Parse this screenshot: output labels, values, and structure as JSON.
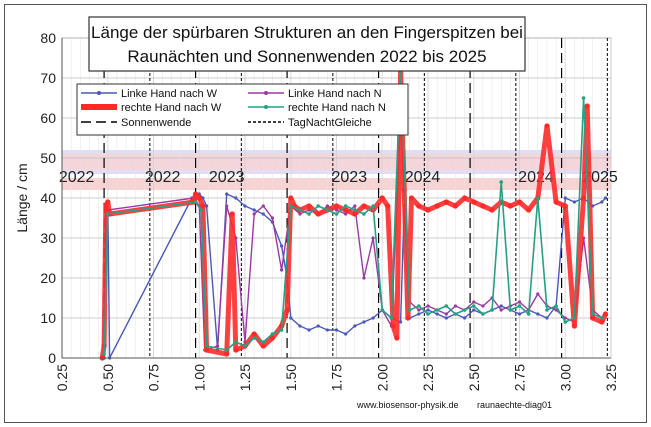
{
  "chart_data": {
    "type": "line",
    "title": [
      "Länge der spürbaren Strukturen an den Fingerspitzen bei",
      "Raunächten  und Sonnenwenden 2022 bis 2025"
    ],
    "xlabel": "",
    "ylabel": "Länge / cm",
    "xlim": [
      0.25,
      3.25
    ],
    "ylim": [
      0,
      80
    ],
    "x_ticks": [
      "0.25",
      "0.50",
      "0.75",
      "1.00",
      "1.25",
      "1.50",
      "1.75",
      "2.00",
      "2.25",
      "2.50",
      "2.75",
      "3.00",
      "3.25"
    ],
    "y_ticks": [
      "0",
      "10",
      "20",
      "30",
      "40",
      "50",
      "60",
      "70",
      "80"
    ],
    "grid": true,
    "year_labels": [
      {
        "x": 0.33,
        "text": "2022"
      },
      {
        "x": 0.8,
        "text": "2022"
      },
      {
        "x": 1.15,
        "text": "2023"
      },
      {
        "x": 1.82,
        "text": "2023"
      },
      {
        "x": 2.22,
        "text": "2024"
      },
      {
        "x": 2.84,
        "text": "2024"
      },
      {
        "x": 3.19,
        "text": "2025"
      }
    ],
    "bands": [
      {
        "y": [
          46,
          52
        ],
        "color": "#d9d1f0"
      },
      {
        "y": [
          42,
          45
        ],
        "color": "#f6c4c4"
      },
      {
        "y": [
          47,
          51
        ],
        "color": "#f9d2d2"
      }
    ],
    "solstices": [
      0.48,
      0.98,
      1.48,
      1.98,
      2.48,
      2.98
    ],
    "equinoxes": [
      0.73,
      1.23,
      1.73,
      2.23,
      2.73,
      3.23
    ],
    "series": [
      {
        "name": "Linke Hand nach W",
        "color": "#4a58b8",
        "x": [
          0.48,
          0.49,
          0.5,
          0.51,
          0.96,
          0.98,
          1.0,
          1.02,
          1.04,
          1.1,
          1.15,
          1.2,
          1.25,
          1.3,
          1.35,
          1.4,
          1.45,
          1.48,
          1.5,
          1.55,
          1.6,
          1.65,
          1.7,
          1.75,
          1.8,
          1.85,
          1.9,
          1.95,
          2.0,
          2.05,
          2.1,
          2.12,
          2.15,
          2.2,
          2.25,
          2.3,
          2.35,
          2.4,
          2.45,
          2.5,
          2.55,
          2.6,
          2.65,
          2.7,
          2.75,
          2.8,
          2.85,
          2.9,
          2.95,
          3.0,
          3.05,
          3.1,
          3.15,
          3.2,
          3.22
        ],
        "y": [
          0,
          38,
          39,
          0,
          40,
          39,
          41,
          40,
          38,
          2,
          41,
          40,
          38,
          37,
          36,
          34,
          28,
          20,
          10,
          8,
          7,
          8,
          7,
          7,
          6,
          8,
          9,
          10,
          12,
          10,
          9,
          38,
          10,
          11,
          12,
          11,
          10,
          11,
          10,
          12,
          11,
          12,
          13,
          12,
          11,
          12,
          11,
          10,
          13,
          40,
          39,
          40,
          38,
          39,
          40
        ]
      },
      {
        "name": "Linke Hand nach N",
        "color": "#9a3aa0",
        "x": [
          0.48,
          0.5,
          0.97,
          1.0,
          1.03,
          1.1,
          1.15,
          1.2,
          1.25,
          1.3,
          1.35,
          1.4,
          1.45,
          1.5,
          1.55,
          1.6,
          1.65,
          1.7,
          1.75,
          1.8,
          1.85,
          1.9,
          1.95,
          2.0,
          2.05,
          2.1,
          2.15,
          2.2,
          2.25,
          2.3,
          2.35,
          2.4,
          2.45,
          2.5,
          2.55,
          2.6,
          2.65,
          2.7,
          2.75,
          2.8,
          2.85,
          2.9,
          2.95,
          3.0,
          3.05,
          3.1,
          3.15,
          3.2
        ],
        "y": [
          0,
          37,
          40,
          38,
          2,
          3,
          38,
          30,
          4,
          36,
          38,
          35,
          22,
          38,
          36,
          37,
          36,
          38,
          37,
          36,
          38,
          20,
          30,
          12,
          8,
          60,
          14,
          12,
          13,
          12,
          11,
          13,
          12,
          14,
          13,
          15,
          12,
          13,
          14,
          12,
          16,
          13,
          12,
          10,
          9,
          30,
          12,
          10
        ]
      },
      {
        "name": "rechte Hand nach W",
        "color": "#ff2b2b",
        "x": [
          0.47,
          0.48,
          0.49,
          0.5,
          0.51,
          0.97,
          0.98,
          1.0,
          1.02,
          1.04,
          1.15,
          1.18,
          1.2,
          1.25,
          1.3,
          1.35,
          1.4,
          1.45,
          1.48,
          1.5,
          1.52,
          1.55,
          1.6,
          1.65,
          1.7,
          1.75,
          1.8,
          1.85,
          1.9,
          1.95,
          2.0,
          2.03,
          2.06,
          2.08,
          2.1,
          2.12,
          2.14,
          2.16,
          2.2,
          2.25,
          2.3,
          2.35,
          2.4,
          2.45,
          2.5,
          2.55,
          2.6,
          2.65,
          2.7,
          2.75,
          2.8,
          2.85,
          2.9,
          2.95,
          3.0,
          3.05,
          3.1,
          3.12,
          3.15,
          3.2,
          3.22
        ],
        "y": [
          0,
          3,
          38,
          39,
          36,
          39,
          41,
          40,
          38,
          2,
          1,
          36,
          2,
          3,
          6,
          3,
          5,
          8,
          12,
          40,
          38,
          37,
          38,
          36,
          37,
          38,
          37,
          36,
          38,
          37,
          40,
          38,
          8,
          5,
          72,
          42,
          10,
          40,
          38,
          37,
          38,
          39,
          38,
          40,
          39,
          38,
          37,
          39,
          38,
          39,
          37,
          40,
          58,
          39,
          38,
          8,
          40,
          63,
          10,
          9,
          11
        ]
      },
      {
        "name": "rechte Hand nach N",
        "color": "#27a084",
        "x": [
          0.48,
          0.5,
          0.98,
          1.01,
          1.04,
          1.15,
          1.2,
          1.25,
          1.3,
          1.35,
          1.4,
          1.45,
          1.5,
          1.55,
          1.6,
          1.65,
          1.7,
          1.75,
          1.8,
          1.85,
          1.9,
          1.95,
          2.0,
          2.05,
          2.1,
          2.15,
          2.2,
          2.25,
          2.3,
          2.35,
          2.4,
          2.45,
          2.5,
          2.55,
          2.6,
          2.65,
          2.7,
          2.75,
          2.8,
          2.85,
          2.9,
          2.95,
          3.0,
          3.05,
          3.1,
          3.15,
          3.2
        ],
        "y": [
          1,
          36,
          39,
          37,
          3,
          2,
          4,
          3,
          5,
          4,
          6,
          7,
          38,
          37,
          36,
          38,
          37,
          36,
          38,
          37,
          36,
          38,
          12,
          10,
          73,
          12,
          13,
          11,
          12,
          13,
          11,
          12,
          13,
          11,
          12,
          44,
          12,
          13,
          11,
          40,
          12,
          13,
          9,
          10,
          65,
          11,
          10
        ]
      },
      {
        "name": "Sonnenwende",
        "color": "#000000",
        "dash": "10,5",
        "x": [],
        "y": []
      },
      {
        "name": "TagNachtGleiche",
        "color": "#000000",
        "dash": "3,2",
        "x": [],
        "y": []
      }
    ]
  },
  "footer": {
    "source": "www.biosensor-physik.de",
    "diagram_id": "raunaechte-diag01"
  }
}
